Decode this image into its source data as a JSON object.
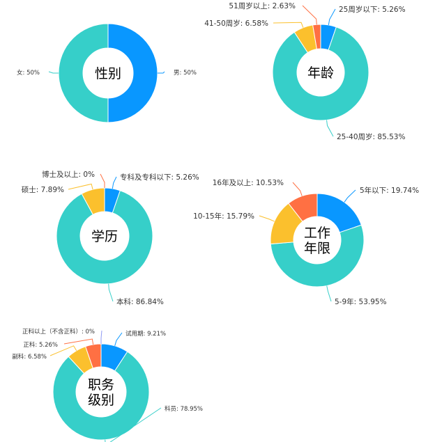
{
  "chart_data": [
    {
      "type": "pie",
      "center_label": [
        "性别"
      ],
      "label_size": "small",
      "slices": [
        {
          "label": "男: 50%",
          "value": 50,
          "color": "#0997ff"
        },
        {
          "label": "女: 50%",
          "value": 50,
          "color": "#36cfc9"
        }
      ]
    },
    {
      "type": "pie",
      "center_label": [
        "年龄"
      ],
      "label_size": "normal",
      "slices": [
        {
          "label": "25周岁以下: 5.26%",
          "value": 5.26,
          "color": "#0997ff"
        },
        {
          "label": "25-40周岁: 85.53%",
          "value": 85.53,
          "color": "#36cfc9"
        },
        {
          "label": "41-50周岁: 6.58%",
          "value": 6.58,
          "color": "#fbc02d"
        },
        {
          "label": "51周岁以上: 2.63%",
          "value": 2.63,
          "color": "#ff7043"
        }
      ]
    },
    {
      "type": "pie",
      "center_label": [
        "学历"
      ],
      "label_size": "normal",
      "slices": [
        {
          "label": "专科及专科以下: 5.26%",
          "value": 5.26,
          "color": "#0997ff"
        },
        {
          "label": "本科: 86.84%",
          "value": 86.84,
          "color": "#36cfc9"
        },
        {
          "label": "硕士: 7.89%",
          "value": 7.89,
          "color": "#fbc02d"
        },
        {
          "label": "博士及以上: 0%",
          "value": 0,
          "color": "#ff7043"
        }
      ]
    },
    {
      "type": "pie",
      "center_label": [
        "工作",
        "年限"
      ],
      "label_size": "normal",
      "slices": [
        {
          "label": "5年以下: 19.74%",
          "value": 19.74,
          "color": "#0997ff"
        },
        {
          "label": "5-9年: 53.95%",
          "value": 53.95,
          "color": "#36cfc9"
        },
        {
          "label": "10-15年: 15.79%",
          "value": 15.79,
          "color": "#fbc02d"
        },
        {
          "label": "16年及以上: 10.53%",
          "value": 10.53,
          "color": "#ff7043"
        }
      ]
    },
    {
      "type": "pie",
      "center_label": [
        "职务",
        "级别"
      ],
      "label_size": "small",
      "slices": [
        {
          "label": "试用期: 9.21%",
          "value": 9.21,
          "color": "#0997ff"
        },
        {
          "label": "科员: 78.95%",
          "value": 78.95,
          "color": "#36cfc9"
        },
        {
          "label": "副科: 6.58%",
          "value": 6.58,
          "color": "#fbc02d"
        },
        {
          "label": "正科: 5.26%",
          "value": 5.26,
          "color": "#ff7043"
        },
        {
          "label": "正科以上（不含正科）: 0%",
          "value": 0,
          "color": "#8e99f3"
        }
      ]
    }
  ]
}
